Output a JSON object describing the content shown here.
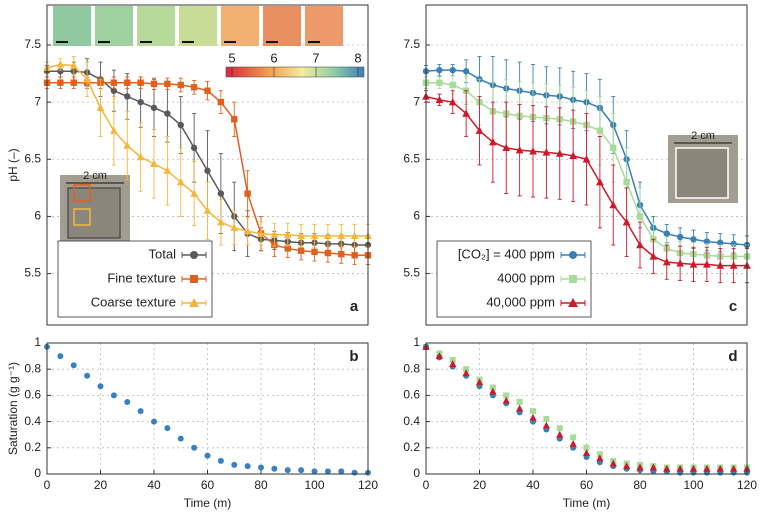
{
  "chart_data": [
    {
      "type": "line",
      "ylabel": "pH (–)",
      "panel": "a",
      "xlim": [
        0,
        120
      ],
      "ylim": [
        5.05,
        7.85
      ],
      "yticks": [
        5.5,
        6,
        6.5,
        7,
        7.5
      ],
      "grid": true,
      "legend": "lower left",
      "colorbar": {
        "ticks": [
          5,
          6,
          7,
          8
        ]
      },
      "inset_label": "2 cm",
      "x": [
        0,
        5,
        10,
        15,
        20,
        25,
        30,
        35,
        40,
        45,
        50,
        55,
        60,
        65,
        70,
        75,
        80,
        85,
        90,
        95,
        100,
        105,
        110,
        115,
        120
      ],
      "series": [
        {
          "name": "Total",
          "color": "#5a5a5a",
          "marker": "circle",
          "values": [
            7.27,
            7.27,
            7.27,
            7.26,
            7.2,
            7.1,
            7.05,
            7.0,
            6.95,
            6.9,
            6.8,
            6.6,
            6.4,
            6.2,
            6.0,
            5.85,
            5.8,
            5.79,
            5.78,
            5.77,
            5.77,
            5.76,
            5.76,
            5.75,
            5.75
          ],
          "errors": [
            0.05,
            0.05,
            0.08,
            0.12,
            0.15,
            0.18,
            0.2,
            0.22,
            0.25,
            0.25,
            0.25,
            0.3,
            0.35,
            0.35,
            0.3,
            0.2,
            0.1,
            0.08,
            0.08,
            0.08,
            0.08,
            0.08,
            0.08,
            0.08,
            0.08
          ]
        },
        {
          "name": "Fine texture",
          "color": "#e0601e",
          "marker": "square",
          "values": [
            7.17,
            7.17,
            7.17,
            7.17,
            7.17,
            7.17,
            7.17,
            7.17,
            7.16,
            7.16,
            7.15,
            7.13,
            7.1,
            7.0,
            6.85,
            6.2,
            5.85,
            5.75,
            5.72,
            5.7,
            5.69,
            5.68,
            5.67,
            5.66,
            5.66
          ],
          "errors": [
            0.05,
            0.05,
            0.05,
            0.05,
            0.05,
            0.05,
            0.05,
            0.05,
            0.05,
            0.05,
            0.06,
            0.06,
            0.08,
            0.1,
            0.15,
            0.2,
            0.15,
            0.1,
            0.08,
            0.08,
            0.08,
            0.08,
            0.08,
            0.08,
            0.08
          ]
        },
        {
          "name": "Coarse texture",
          "color": "#f4b63f",
          "marker": "triangle",
          "values": [
            7.3,
            7.33,
            7.32,
            7.2,
            6.95,
            6.75,
            6.62,
            6.52,
            6.46,
            6.4,
            6.3,
            6.2,
            6.05,
            5.95,
            5.9,
            5.87,
            5.85,
            5.84,
            5.84,
            5.83,
            5.83,
            5.83,
            5.83,
            5.83,
            5.83
          ],
          "errors": [
            0.05,
            0.05,
            0.08,
            0.15,
            0.25,
            0.3,
            0.3,
            0.3,
            0.3,
            0.3,
            0.3,
            0.28,
            0.25,
            0.2,
            0.15,
            0.12,
            0.1,
            0.1,
            0.1,
            0.1,
            0.1,
            0.1,
            0.1,
            0.1,
            0.1
          ]
        }
      ]
    },
    {
      "type": "scatter",
      "ylabel": "Saturation (g g⁻¹)",
      "xlabel": "Time (m)",
      "panel": "b",
      "xlim": [
        0,
        120
      ],
      "ylim": [
        0,
        1
      ],
      "xticks": [
        0,
        20,
        40,
        60,
        80,
        100,
        120
      ],
      "yticks": [
        0,
        0.2,
        0.4,
        0.6,
        0.8,
        1
      ],
      "grid": true,
      "x": [
        0,
        5,
        10,
        15,
        20,
        25,
        30,
        35,
        40,
        45,
        50,
        55,
        60,
        65,
        70,
        75,
        80,
        85,
        90,
        95,
        100,
        105,
        110,
        115,
        120
      ],
      "series": [
        {
          "color": "#3a7fc1",
          "marker": "circle",
          "values": [
            0.97,
            0.9,
            0.83,
            0.75,
            0.67,
            0.6,
            0.55,
            0.48,
            0.4,
            0.35,
            0.27,
            0.2,
            0.14,
            0.1,
            0.07,
            0.06,
            0.05,
            0.04,
            0.03,
            0.03,
            0.02,
            0.02,
            0.02,
            0.01,
            0.01
          ]
        }
      ]
    },
    {
      "type": "line",
      "panel": "c",
      "xlim": [
        0,
        120
      ],
      "ylim": [
        5.05,
        7.85
      ],
      "yticks": [
        5.5,
        6,
        6.5,
        7,
        7.5
      ],
      "grid": true,
      "legend": "lower left",
      "inset_label": "2 cm",
      "x": [
        0,
        5,
        10,
        15,
        20,
        25,
        30,
        35,
        40,
        45,
        50,
        55,
        60,
        65,
        70,
        75,
        80,
        85,
        90,
        95,
        100,
        105,
        110,
        115,
        120
      ],
      "series": [
        {
          "name": "[CO₂] = 400 ppm",
          "color": "#3a7fb5",
          "marker": "circle",
          "values": [
            7.27,
            7.28,
            7.28,
            7.27,
            7.2,
            7.15,
            7.12,
            7.1,
            7.08,
            7.06,
            7.05,
            7.02,
            7.0,
            6.95,
            6.8,
            6.5,
            6.1,
            5.9,
            5.85,
            5.82,
            5.8,
            5.78,
            5.77,
            5.76,
            5.75
          ],
          "errors": [
            0.05,
            0.05,
            0.05,
            0.1,
            0.2,
            0.25,
            0.25,
            0.25,
            0.25,
            0.25,
            0.25,
            0.25,
            0.25,
            0.25,
            0.25,
            0.25,
            0.2,
            0.1,
            0.08,
            0.08,
            0.08,
            0.08,
            0.08,
            0.08,
            0.08
          ]
        },
        {
          "name": "4000 ppm",
          "color": "#a6dc98",
          "marker": "square",
          "values": [
            7.17,
            7.17,
            7.15,
            7.1,
            7.0,
            6.92,
            6.9,
            6.88,
            6.87,
            6.86,
            6.85,
            6.83,
            6.8,
            6.75,
            6.6,
            6.3,
            6.0,
            5.8,
            5.72,
            5.68,
            5.67,
            5.66,
            5.65,
            5.65,
            5.65
          ],
          "errors": [
            0.05,
            0.05,
            0.08,
            0.12,
            0.2,
            0.25,
            0.3,
            0.3,
            0.3,
            0.3,
            0.3,
            0.3,
            0.3,
            0.3,
            0.3,
            0.3,
            0.25,
            0.15,
            0.1,
            0.1,
            0.1,
            0.1,
            0.1,
            0.1,
            0.1
          ]
        },
        {
          "name": "40,000 ppm",
          "color": "#cc1a2a",
          "marker": "triangle",
          "values": [
            7.05,
            7.02,
            7.0,
            6.9,
            6.75,
            6.65,
            6.6,
            6.58,
            6.57,
            6.56,
            6.55,
            6.53,
            6.5,
            6.3,
            6.1,
            5.95,
            5.75,
            5.65,
            5.6,
            5.59,
            5.58,
            5.58,
            5.57,
            5.57,
            5.57
          ],
          "errors": [
            0.05,
            0.05,
            0.1,
            0.2,
            0.3,
            0.35,
            0.4,
            0.4,
            0.4,
            0.4,
            0.4,
            0.4,
            0.4,
            0.4,
            0.35,
            0.3,
            0.2,
            0.15,
            0.15,
            0.15,
            0.15,
            0.15,
            0.15,
            0.15,
            0.15
          ]
        }
      ]
    },
    {
      "type": "scatter",
      "xlabel": "Time (m)",
      "panel": "d",
      "xlim": [
        0,
        120
      ],
      "ylim": [
        0,
        1
      ],
      "xticks": [
        0,
        20,
        40,
        60,
        80,
        100,
        120
      ],
      "yticks": [
        0,
        0.2,
        0.4,
        0.6,
        0.8,
        1
      ],
      "grid": true,
      "x": [
        0,
        5,
        10,
        15,
        20,
        25,
        30,
        35,
        40,
        45,
        50,
        55,
        60,
        65,
        70,
        75,
        80,
        85,
        90,
        95,
        100,
        105,
        110,
        115,
        120
      ],
      "series": [
        {
          "color": "#a6dc98",
          "marker": "square",
          "values": [
            0.97,
            0.92,
            0.87,
            0.8,
            0.72,
            0.66,
            0.6,
            0.55,
            0.48,
            0.42,
            0.35,
            0.28,
            0.2,
            0.15,
            0.1,
            0.08,
            0.07,
            0.06,
            0.05,
            0.05,
            0.05,
            0.05,
            0.05,
            0.05,
            0.05
          ]
        },
        {
          "color": "#3a7fb5",
          "marker": "circle",
          "values": [
            0.97,
            0.89,
            0.82,
            0.75,
            0.67,
            0.6,
            0.54,
            0.47,
            0.4,
            0.34,
            0.27,
            0.2,
            0.13,
            0.09,
            0.06,
            0.04,
            0.03,
            0.02,
            0.02,
            0.01,
            0.01,
            0.01,
            0.01,
            0.01,
            0.01
          ]
        },
        {
          "color": "#cc1a2a",
          "marker": "triangle",
          "values": [
            0.97,
            0.9,
            0.84,
            0.77,
            0.7,
            0.63,
            0.56,
            0.5,
            0.43,
            0.37,
            0.3,
            0.23,
            0.16,
            0.12,
            0.08,
            0.06,
            0.05,
            0.05,
            0.04,
            0.04,
            0.04,
            0.04,
            0.04,
            0.04,
            0.04
          ]
        }
      ]
    }
  ]
}
